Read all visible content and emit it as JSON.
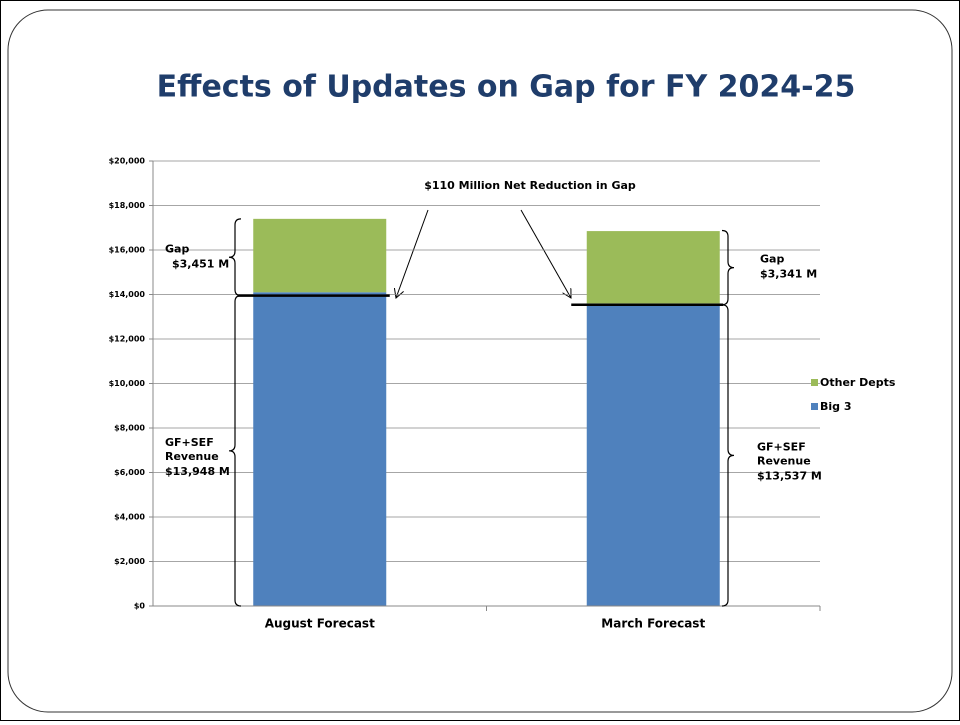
{
  "chart_data": {
    "type": "stacked-bar",
    "title": "Effects of Updates on Gap for FY 2024-25",
    "categories": [
      "August Forecast",
      "March Forecast"
    ],
    "series": [
      {
        "name": "Big 3",
        "color": "#4f81bd",
        "values": [
          14100,
          13600
        ]
      },
      {
        "name": "Other Depts",
        "color": "#9bbb59",
        "values": [
          3300,
          3250
        ]
      }
    ],
    "ylim": [
      0,
      20000
    ],
    "yticks": [
      {
        "value": 0,
        "label": "$0"
      },
      {
        "value": 2000,
        "label": "$2,000"
      },
      {
        "value": 4000,
        "label": "$4,000"
      },
      {
        "value": 6000,
        "label": "$6,000"
      },
      {
        "value": 8000,
        "label": "$8,000"
      },
      {
        "value": 10000,
        "label": "$10,000"
      },
      {
        "value": 12000,
        "label": "$12,000"
      },
      {
        "value": 14000,
        "label": "$14,000"
      },
      {
        "value": 16000,
        "label": "$16,000"
      },
      {
        "value": 18000,
        "label": "$18,000"
      },
      {
        "value": 20000,
        "label": "$20,000"
      }
    ],
    "grid": true,
    "legend": "right",
    "headline": "$110 Million Net Reduction in Gap",
    "gap_title": "Gap",
    "revenue_title": [
      "GF+SEF",
      "Revenue"
    ],
    "gap": {
      "values": [
        3451,
        3341
      ],
      "value_labels": [
        "$3,451 M",
        "$3,341 M"
      ]
    },
    "revenue": {
      "values": [
        13948,
        13537
      ],
      "value_labels": [
        "$13,948 M",
        "$13,537 M"
      ]
    }
  }
}
